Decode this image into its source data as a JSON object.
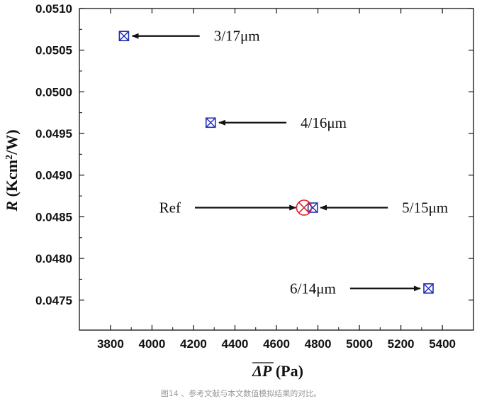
{
  "chart_data": {
    "type": "scatter",
    "xlabel": "ΔP",
    "xlabel_unit": " (Pa)",
    "ylabel": "R",
    "ylabel_unit_before_sup": " (Kcm",
    "ylabel_sup": "2",
    "ylabel_unit_after_sup": "/W)",
    "xlim": [
      3650,
      5550
    ],
    "ylim": [
      0.04714,
      0.051
    ],
    "x_ticks": [
      3800,
      4000,
      4200,
      4400,
      4600,
      4800,
      5000,
      5200,
      5400
    ],
    "y_ticks": [
      "0.0475",
      "0.0480",
      "0.0485",
      "0.0490",
      "0.0495",
      "0.0500",
      "0.0505",
      "0.0510"
    ],
    "grid": false,
    "series": [
      {
        "marker": "boxed-x",
        "color": "#1f2bb3",
        "points": [
          {
            "x": 3865,
            "y": 0.05067
          },
          {
            "x": 4283,
            "y": 0.04963
          },
          {
            "x": 4775,
            "y": 0.04861
          },
          {
            "x": 5333,
            "y": 0.04764
          }
        ]
      },
      {
        "marker": "circled-x",
        "color": "#e0202a",
        "points": [
          {
            "x": 4733,
            "y": 0.04861
          }
        ]
      }
    ],
    "annotations": [
      {
        "text": "3/17μm",
        "arrow_from": [
          4230,
          0.05067
        ],
        "arrow_to": [
          3905,
          0.05067
        ],
        "text_side": "right"
      },
      {
        "text": "4/16μm",
        "arrow_from": [
          4648,
          0.04963
        ],
        "arrow_to": [
          4323,
          0.04963
        ],
        "text_side": "right"
      },
      {
        "text": "Ref",
        "arrow_from": [
          4207,
          0.04861
        ],
        "arrow_to": [
          4693,
          0.04861
        ],
        "text_side": "left"
      },
      {
        "text": "5/15μm",
        "arrow_from": [
          5137,
          0.04861
        ],
        "arrow_to": [
          4812,
          0.04861
        ],
        "text_side": "right"
      },
      {
        "text": "6/14μm",
        "arrow_from": [
          4955,
          0.04764
        ],
        "arrow_to": [
          5293,
          0.04764
        ],
        "text_side": "left"
      }
    ]
  },
  "caption": "图14 、参考文献与本文数值模拟结果的对比。"
}
